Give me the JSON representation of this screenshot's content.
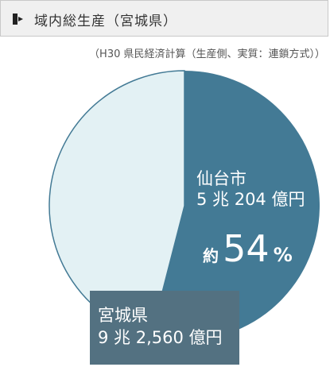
{
  "header": {
    "title": "域内総生産（宮城県）",
    "icon": "chevron-bullet-icon"
  },
  "subtitle": "（H30 県民経済計算（生産側、実質：連鎖方式））",
  "colors": {
    "sendai": "#437a95",
    "rest": "#e3f1f4",
    "box": "#537181",
    "outline": "#437a95"
  },
  "chart_data": {
    "type": "pie",
    "slices": [
      {
        "name": "仙台市",
        "value_text": "5兆204億円",
        "percent": 54
      },
      {
        "name": "宮城県",
        "value_text": "9兆2,560億円",
        "percent": 46
      }
    ],
    "labels": {
      "sendai_name": "仙台市",
      "sendai_value": "5 兆 204 億円",
      "pct_prefix": "約",
      "pct_value": "54",
      "pct_symbol": "%",
      "miyagi_name": "宮城県",
      "miyagi_value": "9 兆 2,560 億円"
    }
  }
}
